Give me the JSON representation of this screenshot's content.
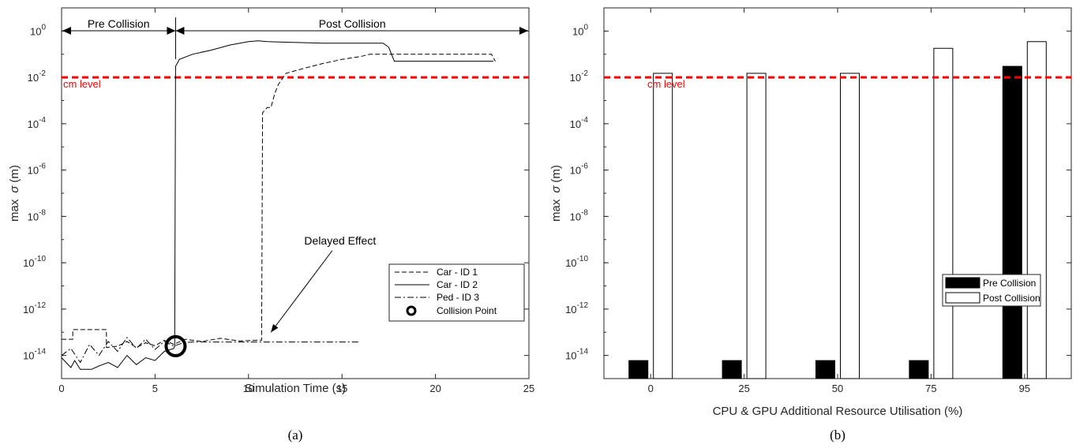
{
  "chart_data": [
    {
      "type": "line",
      "caption": "(a)",
      "xlabel": "Simulation Time (s)",
      "ylabel_prefix": "max",
      "ylabel_sigma": "σ",
      "ylabel_suffix": "(m)",
      "xlim": [
        0,
        25
      ],
      "ylim": [
        1e-15,
        10.0
      ],
      "yscale": "log",
      "grid": false,
      "legend_position": "lower-right",
      "xticks": [
        {
          "label": "0",
          "value": 0
        },
        {
          "label": "5",
          "value": 5
        },
        {
          "label": "10",
          "value": 10
        },
        {
          "label": "15",
          "value": 15
        },
        {
          "label": "20",
          "value": 20
        },
        {
          "label": "25",
          "value": 25
        }
      ],
      "yticks": [
        {
          "base": "10",
          "exp": "0",
          "value": 1
        },
        {
          "base": "10",
          "exp": "-2",
          "value": 0.01
        },
        {
          "base": "10",
          "exp": "-4",
          "value": 0.0001
        },
        {
          "base": "10",
          "exp": "-6",
          "value": 1e-06
        },
        {
          "base": "10",
          "exp": "-8",
          "value": 1e-08
        },
        {
          "base": "10",
          "exp": "-10",
          "value": 1e-10
        },
        {
          "base": "10",
          "exp": "-12",
          "value": 1e-12
        },
        {
          "base": "10",
          "exp": "-14",
          "value": 1e-14
        }
      ],
      "threshold": {
        "label": "cm level",
        "value": 0.01,
        "color": "#ff0000"
      },
      "phases": [
        {
          "label": "Pre Collision",
          "x_start": 0,
          "x_end": 6.1
        },
        {
          "label": "Post Collision",
          "x_start": 6.1,
          "x_end": 25
        }
      ],
      "annotation": {
        "text": "Delayed Effect",
        "x": 14.9,
        "y": 1e-09,
        "arrow_to_x": 11.2,
        "arrow_to_y": 1e-13
      },
      "collision_point": {
        "label": "Collision Point",
        "x": 6.1,
        "y": 2.5e-14
      },
      "series": [
        {
          "name": "Car - ID 1",
          "style": "dashed",
          "points": [
            [
              0,
              5e-14
            ],
            [
              0.6,
              5e-14
            ],
            [
              0.6,
              1.3e-13
            ],
            [
              2.4,
              1.3e-13
            ],
            [
              2.4,
              2.2e-14
            ],
            [
              3.0,
              2.5e-14
            ],
            [
              3.5,
              4e-14
            ],
            [
              4.0,
              2.2e-14
            ],
            [
              4.5,
              3.5e-14
            ],
            [
              5.0,
              2.6e-14
            ],
            [
              5.5,
              4.5e-14
            ],
            [
              6.0,
              3e-14
            ],
            [
              6.6,
              5e-14
            ],
            [
              7.5,
              4e-14
            ],
            [
              8.5,
              5.5e-14
            ],
            [
              9.5,
              4.2e-14
            ],
            [
              10.5,
              4.5e-14
            ],
            [
              10.7,
              4.5e-14
            ],
            [
              10.75,
              0.0003
            ],
            [
              11.0,
              0.0005
            ],
            [
              11.2,
              0.0005
            ],
            [
              11.4,
              0.002
            ],
            [
              11.6,
              0.005
            ],
            [
              12.0,
              0.015
            ],
            [
              13.0,
              0.025
            ],
            [
              14.0,
              0.04
            ],
            [
              15.0,
              0.06
            ],
            [
              16.0,
              0.08
            ],
            [
              16.5,
              0.1
            ],
            [
              20.0,
              0.1
            ],
            [
              23.0,
              0.1
            ],
            [
              23.2,
              0.05
            ]
          ]
        },
        {
          "name": "Car - ID 2",
          "style": "solid",
          "points": [
            [
              0,
              8e-15
            ],
            [
              0.5,
              3e-15
            ],
            [
              0.7,
              6e-15
            ],
            [
              1.0,
              2.5e-15
            ],
            [
              1.6,
              2.5e-15
            ],
            [
              2.0,
              3.5e-15
            ],
            [
              2.5,
              5e-15
            ],
            [
              3.0,
              3e-15
            ],
            [
              3.5,
              1e-14
            ],
            [
              4.0,
              4e-15
            ],
            [
              4.5,
              8e-15
            ],
            [
              5.0,
              6e-15
            ],
            [
              5.5,
              1.5e-14
            ],
            [
              6.0,
              2e-14
            ],
            [
              6.05,
              2.5e-14
            ],
            [
              6.1,
              0.03
            ],
            [
              6.3,
              0.06
            ],
            [
              7.0,
              0.1
            ],
            [
              8.0,
              0.15
            ],
            [
              9.0,
              0.25
            ],
            [
              10.0,
              0.35
            ],
            [
              10.5,
              0.38
            ],
            [
              11.0,
              0.35
            ],
            [
              12.0,
              0.33
            ],
            [
              14.0,
              0.3
            ],
            [
              17.2,
              0.3
            ],
            [
              17.5,
              0.2
            ],
            [
              17.8,
              0.05
            ],
            [
              20.0,
              0.05
            ],
            [
              23.1,
              0.05
            ]
          ]
        },
        {
          "name": "Ped - ID 3",
          "style": "dashdot",
          "points": [
            [
              0,
              1e-14
            ],
            [
              0.5,
              2e-14
            ],
            [
              1.0,
              5e-15
            ],
            [
              1.5,
              3e-14
            ],
            [
              2.0,
              1e-14
            ],
            [
              2.5,
              4e-14
            ],
            [
              3.0,
              1.5e-14
            ],
            [
              3.5,
              6e-14
            ],
            [
              4.0,
              2e-14
            ],
            [
              4.5,
              5e-14
            ],
            [
              5.0,
              1.8e-14
            ],
            [
              5.5,
              4e-14
            ],
            [
              6.0,
              2.5e-14
            ],
            [
              6.5,
              3.5e-14
            ],
            [
              7.0,
              3.8e-14
            ],
            [
              10.0,
              3.8e-14
            ],
            [
              15.9,
              3.8e-14
            ]
          ]
        }
      ],
      "legend": [
        {
          "label": "Car - ID 1",
          "style": "dashed"
        },
        {
          "label": "Car - ID 2",
          "style": "solid"
        },
        {
          "label": "Ped - ID 3",
          "style": "dashdot"
        },
        {
          "label": "Collision Point",
          "style": "marker"
        }
      ]
    },
    {
      "type": "bar",
      "caption": "(b)",
      "xlabel": "CPU & GPU Additional Resource Utilisation (%)",
      "ylabel_prefix": "max",
      "ylabel_sigma": "σ",
      "ylabel_suffix": "(m)",
      "ylim": [
        1e-15,
        10.0
      ],
      "yscale": "log",
      "grid": false,
      "legend_position": "lower-right",
      "categories": [
        "0",
        "25",
        "50",
        "75",
        "95"
      ],
      "yticks": [
        {
          "base": "10",
          "exp": "0",
          "value": 1
        },
        {
          "base": "10",
          "exp": "-2",
          "value": 0.01
        },
        {
          "base": "10",
          "exp": "-4",
          "value": 0.0001
        },
        {
          "base": "10",
          "exp": "-6",
          "value": 1e-06
        },
        {
          "base": "10",
          "exp": "-8",
          "value": 1e-08
        },
        {
          "base": "10",
          "exp": "-10",
          "value": 1e-10
        },
        {
          "base": "10",
          "exp": "-12",
          "value": 1e-12
        },
        {
          "base": "10",
          "exp": "-14",
          "value": 1e-14
        }
      ],
      "threshold": {
        "label": "cm level",
        "value": 0.01,
        "color": "#ff0000"
      },
      "series": [
        {
          "name": "Pre Collision",
          "color": "#000000",
          "values": [
            6e-15,
            6e-15,
            6e-15,
            6e-15,
            0.03
          ]
        },
        {
          "name": "Post Collision",
          "color": "#ffffff",
          "values": [
            0.015,
            0.015,
            0.015,
            0.18,
            0.35
          ]
        }
      ]
    }
  ]
}
